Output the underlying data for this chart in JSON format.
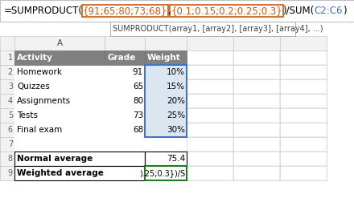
{
  "formula_parts": [
    {
      "text": "=SUMPRODUCT(",
      "color": "#000000",
      "box": false
    },
    {
      "text": "{91;65;80;73;68}",
      "color": "#c55a11",
      "box": true
    },
    {
      "text": ",",
      "color": "#000000",
      "box": false
    },
    {
      "text": "{0.1;0.15;0.2;0.25;0.3}",
      "color": "#c55a11",
      "box": true
    },
    {
      "text": ")/SUM(",
      "color": "#000000",
      "box": false
    },
    {
      "text": "C2:C6",
      "color": "#4472c4",
      "box": false
    },
    {
      "text": ")",
      "color": "#000000",
      "box": false
    }
  ],
  "tooltip": "SUMPRODUCT(array1, [array2], [array3], [array4], ...)",
  "headers": [
    "Activity",
    "Grade",
    "Weight"
  ],
  "rows": [
    [
      "Homework",
      "91",
      "10%"
    ],
    [
      "Quizzes",
      "65",
      "15%"
    ],
    [
      "Assignments",
      "80",
      "20%"
    ],
    [
      "Tests",
      "73",
      "25%"
    ],
    [
      "Final exam",
      "68",
      "30%"
    ]
  ],
  "normal_avg_label": "Normal average",
  "normal_avg_value": "75.4",
  "weighted_avg_label": "Weighted average",
  "weighted_avg_value": ").25;0.3})/S",
  "header_bg": "#808080",
  "header_text": "#ffffff",
  "selected_col_bg": "#dce6f1",
  "selected_border": "#4472c4",
  "green_border": "#1f7a1f",
  "grid_color": "#d0d0d0",
  "formula_orange": "#c55a11",
  "formula_blue": "#4472c4",
  "row_num_bg": "#f2f2f2",
  "row_num_color": "#606060",
  "col_header_bg": "#f2f2f2",
  "white": "#ffffff",
  "black": "#000000",
  "dark_border": "#000000"
}
